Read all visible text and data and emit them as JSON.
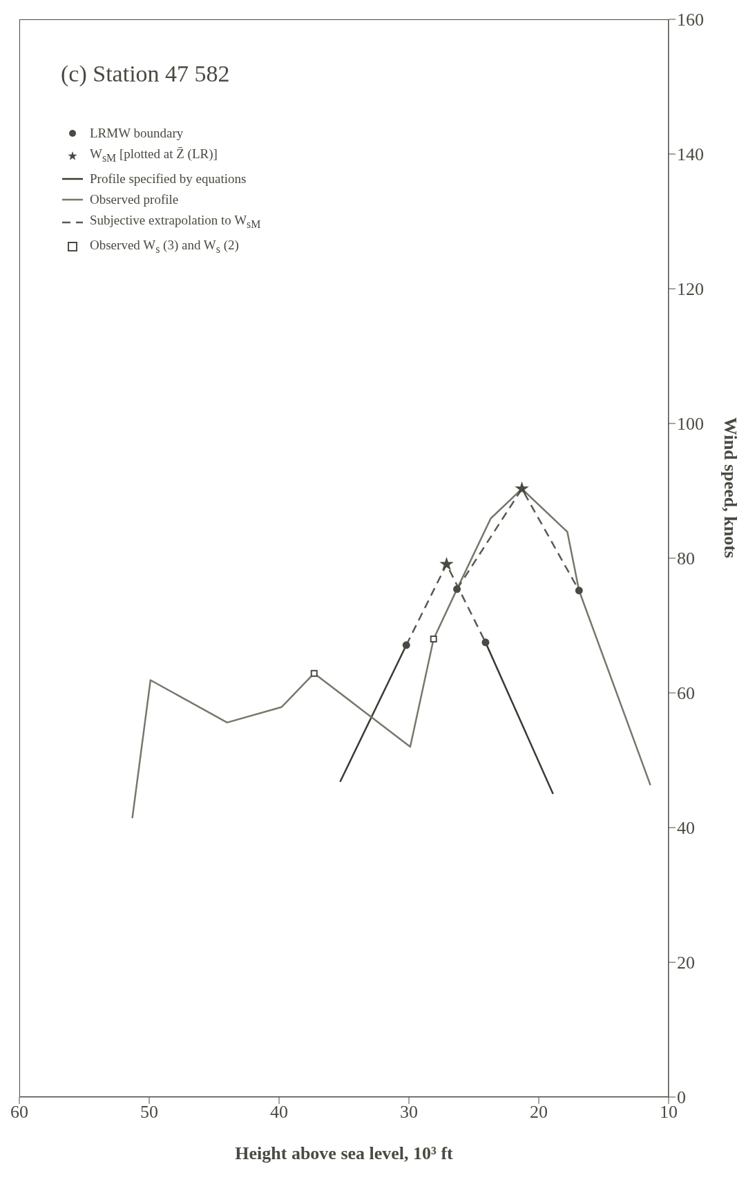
{
  "chart_data": {
    "type": "line",
    "title": "(c) Station 47 582",
    "xlabel": "Height above sea level, 10³ ft",
    "ylabel": "Wind speed, knots",
    "xlim": [
      60,
      10
    ],
    "xticks": [
      60,
      50,
      40,
      30,
      20,
      10
    ],
    "ylim": [
      0,
      160
    ],
    "yticks": [
      0,
      20,
      40,
      60,
      80,
      100,
      120,
      140,
      160
    ],
    "legend": "top left",
    "series": [
      {
        "name": "LRMW boundary",
        "type": "scatter",
        "marker": "circle",
        "color": "#4a4a42",
        "x": [
          30.2,
          24.1,
          26.3,
          16.9
        ],
        "values": [
          67.1,
          67.5,
          75.4,
          75.2
        ]
      },
      {
        "name": "W$_{sM}$ [plotted at Z̄ (LR)]",
        "type": "scatter",
        "marker": "star",
        "color": "#4a4a42",
        "x": [
          27.1,
          21.3
        ],
        "values": [
          79.1,
          90.3
        ]
      },
      {
        "name": "Profile specified by equations",
        "line_style": "solid",
        "color": "#3a3a33",
        "x": [
          35.3,
          30.2,
          27,
          24.1,
          18.9
        ],
        "values": [
          46.8,
          67.1,
          null,
          67.5,
          45
        ]
      },
      {
        "name": "Observed profile",
        "line_style": "solid",
        "color": "#77776c",
        "x": [
          51.3,
          49.9,
          44,
          39.8,
          37.3,
          29.9,
          28.1,
          26.3,
          23.7,
          21.3,
          17.8,
          16.9,
          11.4
        ],
        "values": [
          41.4,
          61.9,
          55.6,
          57.9,
          62.9,
          52,
          68,
          75.4,
          85.9,
          90.3,
          83.9,
          75.2,
          46.3
        ]
      },
      {
        "name": "Subjective extrapolation to W$_{sM}$",
        "type": "line",
        "line_style": "dashed",
        "color": "#5a5a50",
        "x": [
          30.2,
          27.1,
          24.1,
          25,
          26.3,
          21.3,
          16.9
        ],
        "values": [
          67.1,
          79.1,
          67.5,
          null,
          75.4,
          90.3,
          75.2
        ]
      },
      {
        "name": "Observed W$_{s}$ (3) and W$_{s}$ (2)",
        "type": "scatter",
        "marker": "square",
        "color": "#4a4a42",
        "x": [
          37.3,
          28.1
        ],
        "values": [
          62.9,
          68
        ]
      }
    ]
  }
}
